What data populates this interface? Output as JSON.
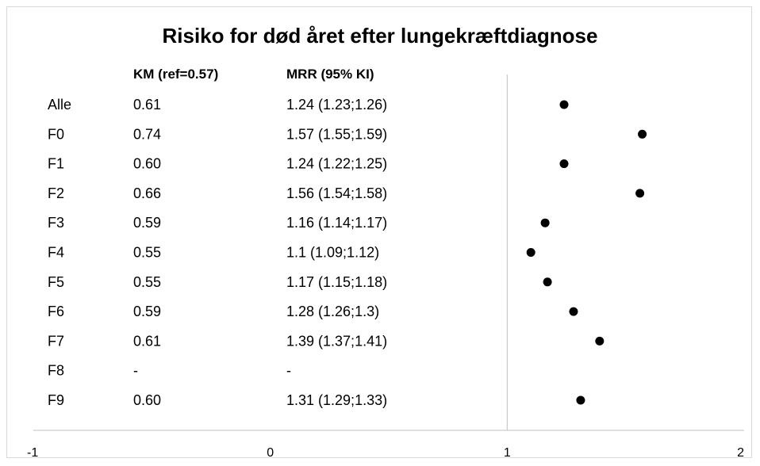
{
  "chart_data": {
    "type": "scatter",
    "title": "Risiko for død året efter lungekræftdiagnose",
    "columns": {
      "km": "KM (ref=0.57)",
      "mrr": "MRR (95% KI)"
    },
    "rows": [
      {
        "label": "Alle",
        "km": "0.61",
        "mrr_text": "1.24 (1.23;1.26)",
        "mrr": 1.24
      },
      {
        "label": "F0",
        "km": "0.74",
        "mrr_text": "1.57 (1.55;1.59)",
        "mrr": 1.57
      },
      {
        "label": "F1",
        "km": "0.60",
        "mrr_text": "1.24 (1.22;1.25)",
        "mrr": 1.24
      },
      {
        "label": "F2",
        "km": "0.66",
        "mrr_text": "1.56 (1.54;1.58)",
        "mrr": 1.56
      },
      {
        "label": "F3",
        "km": "0.59",
        "mrr_text": "1.16 (1.14;1.17)",
        "mrr": 1.16
      },
      {
        "label": "F4",
        "km": "0.55",
        "mrr_text": "1.1 (1.09;1.12)",
        "mrr": 1.1
      },
      {
        "label": "F5",
        "km": "0.55",
        "mrr_text": "1.17 (1.15;1.18)",
        "mrr": 1.17
      },
      {
        "label": "F6",
        "km": "0.59",
        "mrr_text": "1.28 (1.26;1.3)",
        "mrr": 1.28
      },
      {
        "label": "F7",
        "km": "0.61",
        "mrr_text": "1.39 (1.37;1.41)",
        "mrr": 1.39
      },
      {
        "label": "F8",
        "km": "-",
        "mrr_text": "-",
        "mrr": null
      },
      {
        "label": "F9",
        "km": "0.60",
        "mrr_text": "1.31 (1.29;1.33)",
        "mrr": 1.31
      }
    ],
    "xlim": [
      -1,
      2
    ],
    "x_ticks": [
      -1,
      0,
      1,
      2
    ],
    "x_tick_labels": [
      "-1",
      "0",
      "1",
      "2"
    ],
    "reference_line_x": 1,
    "grid": false,
    "marker_color": "#000000",
    "axis_color": "#bfbfbf"
  }
}
